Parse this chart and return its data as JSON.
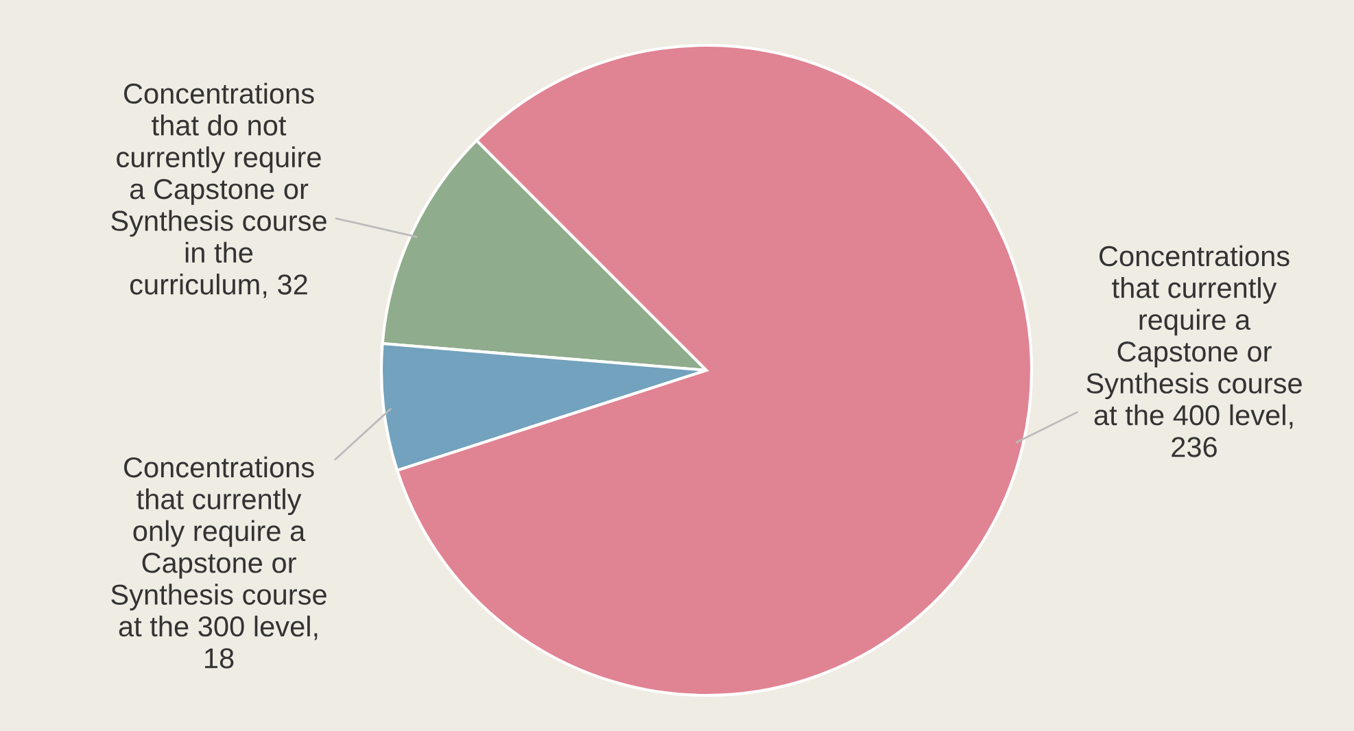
{
  "chart_data": {
    "type": "pie",
    "categories": [
      "Concentrations that do not currently require a Capstone or Synthesis course in the curriculum, 32",
      "Concentrations that currently only require a Capstone or Synthesis course at the 300 level, 18",
      "Concentrations that currently require a Capstone or Synthesis course at the 400 level, 236"
    ],
    "values": [
      32,
      18,
      236
    ],
    "colors": [
      "#8fac8c",
      "#72a2bd",
      "#e08393"
    ]
  }
}
